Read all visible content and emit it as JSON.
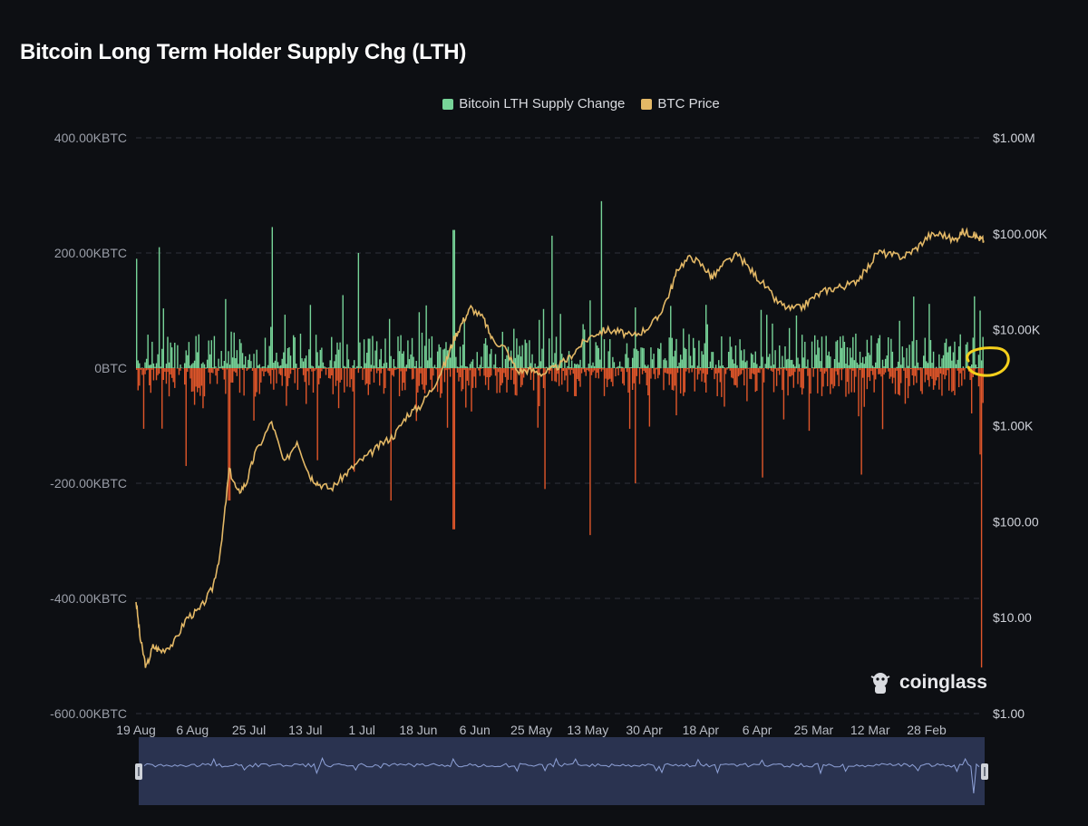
{
  "title": "Bitcoin Long Term Holder Supply Chg (LTH)",
  "legend": [
    {
      "label": "Bitcoin LTH Supply Change",
      "color": "#77d498"
    },
    {
      "label": "BTC Price",
      "color": "#e3b866"
    }
  ],
  "watermark": "coinglass",
  "colors": {
    "positive": "#77d498",
    "negative": "#e0562a",
    "price": "#e3b866",
    "grid": "#2e323b",
    "annotation": "#f5d01c"
  },
  "chart_data": {
    "type": "bar+line",
    "title": "Bitcoin Long Term Holder Supply Chg (LTH)",
    "x_order": "reversed (newest on right)",
    "x_ticks": [
      "19 Aug",
      "6 Aug",
      "25 Jul",
      "13 Jul",
      "1 Jul",
      "18 Jun",
      "6 Jun",
      "25 May",
      "13 May",
      "30 Apr",
      "18 Apr",
      "6 Apr",
      "25 Mar",
      "12 Mar",
      "28 Feb"
    ],
    "left_axis": {
      "label_ticks": [
        "400.00KBTC",
        "200.00KBTC",
        "0BTC",
        "-200.00KBTC",
        "-400.00KBTC",
        "-600.00KBTC"
      ],
      "range": [
        -600000,
        400000
      ],
      "unit": "BTC"
    },
    "right_axis": {
      "label_ticks": [
        "$1.00M",
        "$100.00K",
        "$10.00K",
        "$1.00K",
        "$100.00",
        "$10.00",
        "$1.00"
      ],
      "scale": "log",
      "range": [
        1,
        1000000
      ]
    },
    "series": [
      {
        "name": "Bitcoin LTH Supply Change",
        "type": "bar",
        "unit": "BTC",
        "notable_values": {
          "max_positive": 290000,
          "recent_min": -520000,
          "typical_range": [
            -100000,
            100000
          ]
        }
      },
      {
        "name": "BTC Price",
        "type": "line",
        "scale": "log",
        "points": [
          [
            0,
            15
          ],
          [
            0.005,
            6
          ],
          [
            0.012,
            3
          ],
          [
            0.02,
            5
          ],
          [
            0.03,
            4.5
          ],
          [
            0.045,
            5.5
          ],
          [
            0.06,
            10
          ],
          [
            0.075,
            12
          ],
          [
            0.09,
            20
          ],
          [
            0.1,
            50
          ],
          [
            0.11,
            350
          ],
          [
            0.12,
            200
          ],
          [
            0.13,
            250
          ],
          [
            0.14,
            500
          ],
          [
            0.16,
            1100
          ],
          [
            0.175,
            400
          ],
          [
            0.19,
            700
          ],
          [
            0.205,
            300
          ],
          [
            0.215,
            250
          ],
          [
            0.23,
            220
          ],
          [
            0.245,
            300
          ],
          [
            0.26,
            400
          ],
          [
            0.275,
            500
          ],
          [
            0.29,
            650
          ],
          [
            0.305,
            800
          ],
          [
            0.32,
            1300
          ],
          [
            0.335,
            1600
          ],
          [
            0.35,
            2500
          ],
          [
            0.365,
            4500
          ],
          [
            0.375,
            8000
          ],
          [
            0.385,
            12000
          ],
          [
            0.395,
            17000
          ],
          [
            0.41,
            13000
          ],
          [
            0.42,
            8000
          ],
          [
            0.435,
            6500
          ],
          [
            0.45,
            3700
          ],
          [
            0.465,
            3800
          ],
          [
            0.48,
            3500
          ],
          [
            0.495,
            4000
          ],
          [
            0.51,
            5000
          ],
          [
            0.525,
            7000
          ],
          [
            0.54,
            9000
          ],
          [
            0.555,
            10000
          ],
          [
            0.57,
            9500
          ],
          [
            0.585,
            8500
          ],
          [
            0.6,
            10000
          ],
          [
            0.615,
            13000
          ],
          [
            0.63,
            25000
          ],
          [
            0.64,
            45000
          ],
          [
            0.655,
            58000
          ],
          [
            0.67,
            45000
          ],
          [
            0.68,
            35000
          ],
          [
            0.695,
            50000
          ],
          [
            0.71,
            60000
          ],
          [
            0.725,
            42000
          ],
          [
            0.74,
            30000
          ],
          [
            0.755,
            20000
          ],
          [
            0.77,
            16500
          ],
          [
            0.785,
            17000
          ],
          [
            0.8,
            22000
          ],
          [
            0.815,
            26000
          ],
          [
            0.83,
            28000
          ],
          [
            0.845,
            30000
          ],
          [
            0.86,
            40000
          ],
          [
            0.875,
            65000
          ],
          [
            0.89,
            60000
          ],
          [
            0.905,
            58000
          ],
          [
            0.92,
            70000
          ],
          [
            0.935,
            95000
          ],
          [
            0.95,
            100000
          ],
          [
            0.965,
            85000
          ],
          [
            0.975,
            105000
          ],
          [
            0.985,
            100000
          ],
          [
            0.995,
            90000
          ],
          [
            1,
            85000
          ]
        ]
      }
    ],
    "annotation": "yellow circle near latest value at right edge"
  }
}
